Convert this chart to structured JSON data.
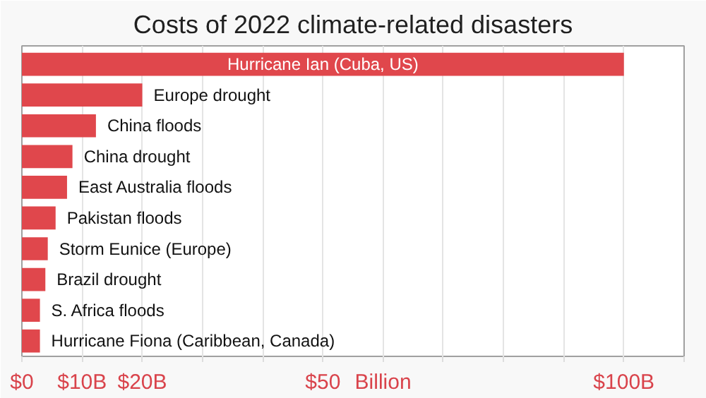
{
  "chart_data": {
    "type": "bar",
    "orientation": "horizontal",
    "title": "Costs of 2022 climate-related disasters",
    "categories": [
      "Hurricane Ian (Cuba, US)",
      "Europe drought",
      "China floods",
      "China drought",
      "East Australia floods",
      "Pakistan floods",
      "Storm Eunice (Europe)",
      "Brazil drought",
      "S. Africa floods",
      "Hurricane Fiona (Caribbean, Canada)"
    ],
    "values": [
      100,
      20,
      12.3,
      8.4,
      7.5,
      5.6,
      4.3,
      3.9,
      3.0,
      3.0
    ],
    "color": "#e0474c",
    "xlim": [
      0,
      110
    ],
    "xticks": [
      {
        "value": 0,
        "label": "$0"
      },
      {
        "value": 10,
        "label": "$10B"
      },
      {
        "value": 20,
        "label": "$20B"
      },
      {
        "value": 30,
        "label": null
      },
      {
        "value": 40,
        "label": null
      },
      {
        "value": 50,
        "label": "$50"
      },
      {
        "value": 60,
        "label": "Billion"
      },
      {
        "value": 70,
        "label": null
      },
      {
        "value": 80,
        "label": null
      },
      {
        "value": 90,
        "label": null
      },
      {
        "value": 100,
        "label": "$100B"
      },
      {
        "value": 110,
        "label": null
      }
    ],
    "grid": "x",
    "tick_labels": "x"
  }
}
